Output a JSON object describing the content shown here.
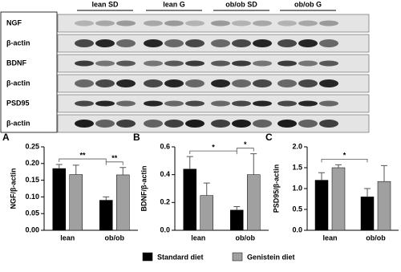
{
  "blot": {
    "columns": [
      "lean SD",
      "lean G",
      "ob/ob SD",
      "ob/ob G"
    ],
    "rows": [
      "NGF",
      "β-actin",
      "BDNF",
      "β-actin",
      "PSD95",
      "β-actin"
    ]
  },
  "chart_data": [
    {
      "type": "bar",
      "panel": "A",
      "y_label": "NGF/β-actin",
      "categories": [
        "lean",
        "ob/ob"
      ],
      "series": [
        {
          "name": "Standard diet",
          "color": "#000000",
          "values": [
            0.185,
            0.09
          ],
          "errors": [
            0.012,
            0.01
          ]
        },
        {
          "name": "Genistein diet",
          "color": "#a0a0a0",
          "values": [
            0.167,
            0.166
          ],
          "errors": [
            0.028,
            0.022
          ]
        }
      ],
      "ylim": [
        0,
        0.25
      ],
      "yticks": [
        {
          "value": 0,
          "label": "0.00"
        },
        {
          "value": 0.05,
          "label": "0.05"
        },
        {
          "value": 0.1,
          "label": "0.10"
        },
        {
          "value": 0.15,
          "label": "0.15"
        },
        {
          "value": 0.2,
          "label": "0.20"
        },
        {
          "value": 0.25,
          "label": "0.25"
        }
      ],
      "comparisons": [
        {
          "label": "**",
          "from": [
            0,
            0
          ],
          "to": [
            1,
            0
          ]
        },
        {
          "label": "**",
          "from": [
            1,
            0
          ],
          "to": [
            1,
            1
          ]
        }
      ]
    },
    {
      "type": "bar",
      "panel": "B",
      "y_label": "BDNF/β-actin",
      "categories": [
        "lean",
        "ob/ob"
      ],
      "series": [
        {
          "name": "Standard diet",
          "color": "#000000",
          "values": [
            0.44,
            0.145
          ],
          "errors": [
            0.09,
            0.025
          ]
        },
        {
          "name": "Genistein diet",
          "color": "#a0a0a0",
          "values": [
            0.25,
            0.4
          ],
          "errors": [
            0.09,
            0.15
          ]
        }
      ],
      "ylim": [
        0,
        0.6
      ],
      "yticks": [
        {
          "value": 0,
          "label": "0.0"
        },
        {
          "value": 0.2,
          "label": "0.2"
        },
        {
          "value": 0.4,
          "label": "0.4"
        },
        {
          "value": 0.6,
          "label": "0.6"
        }
      ],
      "comparisons": [
        {
          "label": "*",
          "from": [
            0,
            0
          ],
          "to": [
            1,
            0
          ]
        },
        {
          "label": "*",
          "from": [
            1,
            0
          ],
          "to": [
            1,
            1
          ]
        }
      ]
    },
    {
      "type": "bar",
      "panel": "C",
      "y_label": "PSD95/β-actin",
      "categories": [
        "lean",
        "ob/ob"
      ],
      "series": [
        {
          "name": "Standard diet",
          "color": "#000000",
          "values": [
            1.2,
            0.8
          ],
          "errors": [
            0.18,
            0.2
          ]
        },
        {
          "name": "Genistein diet",
          "color": "#a0a0a0",
          "values": [
            1.5,
            1.17
          ],
          "errors": [
            0.07,
            0.38
          ]
        }
      ],
      "ylim": [
        0,
        2
      ],
      "yticks": [
        {
          "value": 0,
          "label": "0.0"
        },
        {
          "value": 0.5,
          "label": "0.5"
        },
        {
          "value": 1,
          "label": "1.0"
        },
        {
          "value": 1.5,
          "label": "1.5"
        },
        {
          "value": 2,
          "label": "2.0"
        }
      ],
      "comparisons": [
        {
          "label": "*",
          "from": [
            0,
            0
          ],
          "to": [
            1,
            0
          ]
        }
      ]
    }
  ]
}
